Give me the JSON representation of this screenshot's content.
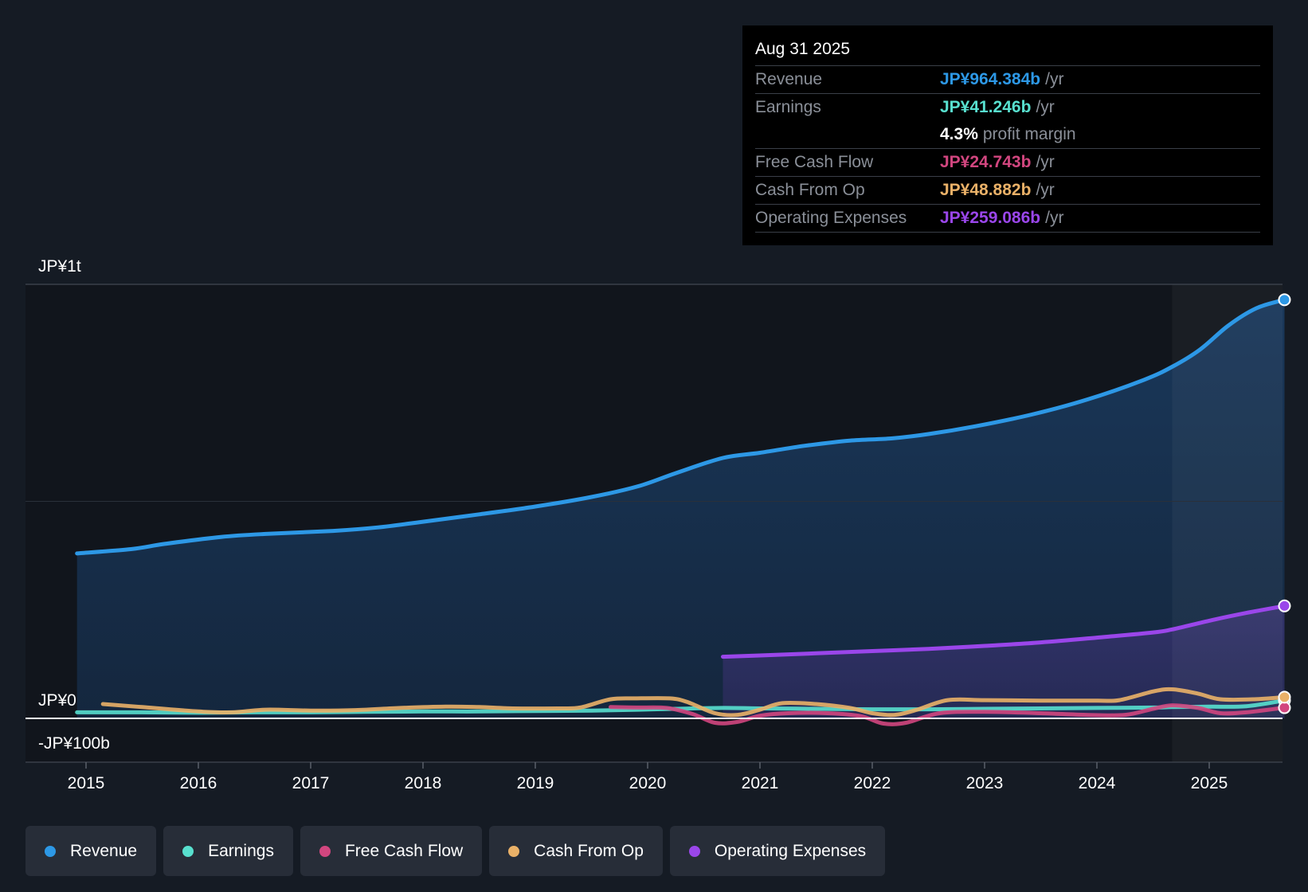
{
  "colors": {
    "background": "#151b24",
    "revenue": "#2d98e6",
    "earnings": "#58e0cf",
    "fcf": "#d2467f",
    "cfo": "#eab168",
    "opex": "#9a46ea"
  },
  "tooltip": {
    "date": "Aug 31 2025",
    "rows": [
      {
        "label": "Revenue",
        "value": "JP¥964.384b",
        "unit": "/yr"
      },
      {
        "label": "Earnings",
        "value": "JP¥41.246b",
        "unit": "/yr"
      },
      {
        "label": "",
        "value": "4.3%",
        "unit": "profit margin"
      },
      {
        "label": "Free Cash Flow",
        "value": "JP¥24.743b",
        "unit": "/yr"
      },
      {
        "label": "Cash From Op",
        "value": "JP¥48.882b",
        "unit": "/yr"
      },
      {
        "label": "Operating Expenses",
        "value": "JP¥259.086b",
        "unit": "/yr"
      }
    ]
  },
  "legend": [
    {
      "label": "Revenue",
      "color": "#2d98e6"
    },
    {
      "label": "Earnings",
      "color": "#58e0cf"
    },
    {
      "label": "Free Cash Flow",
      "color": "#d2467f"
    },
    {
      "label": "Cash From Op",
      "color": "#eab168"
    },
    {
      "label": "Operating Expenses",
      "color": "#9a46ea"
    }
  ],
  "chart_data": {
    "type": "area",
    "title": "",
    "xlabel": "",
    "ylabel": "",
    "x_ticks": [
      "2015",
      "2016",
      "2017",
      "2018",
      "2019",
      "2020",
      "2021",
      "2022",
      "2023",
      "2024",
      "2025"
    ],
    "y_tick_labels": [
      {
        "value": 1000,
        "label": "JP¥1t"
      },
      {
        "value": 0,
        "label": "JP¥0"
      },
      {
        "value": -100,
        "label": "-JP¥100b"
      }
    ],
    "ylim": [
      -100,
      1000
    ],
    "xlim": [
      2014.55,
      2025.75
    ],
    "units": "JP¥ billions",
    "forecast_shade_start": 2024.67,
    "series": [
      {
        "name": "Revenue",
        "color": "#2d98e6",
        "fill": true,
        "points": [
          [
            2014.92,
            380
          ],
          [
            2015.4,
            390
          ],
          [
            2015.7,
            402
          ],
          [
            2016.2,
            418
          ],
          [
            2016.6,
            425
          ],
          [
            2017.2,
            432
          ],
          [
            2017.6,
            440
          ],
          [
            2018.0,
            453
          ],
          [
            2018.5,
            470
          ],
          [
            2019.0,
            488
          ],
          [
            2019.5,
            510
          ],
          [
            2019.92,
            535
          ],
          [
            2020.25,
            565
          ],
          [
            2020.67,
            600
          ],
          [
            2021.0,
            612
          ],
          [
            2021.4,
            628
          ],
          [
            2021.8,
            640
          ],
          [
            2022.17,
            645
          ],
          [
            2022.5,
            655
          ],
          [
            2022.92,
            673
          ],
          [
            2023.42,
            700
          ],
          [
            2023.92,
            735
          ],
          [
            2024.42,
            780
          ],
          [
            2024.67,
            810
          ],
          [
            2024.92,
            850
          ],
          [
            2025.17,
            905
          ],
          [
            2025.42,
            945
          ],
          [
            2025.67,
            964.4
          ]
        ]
      },
      {
        "name": "Operating Expenses",
        "color": "#9a46ea",
        "fill": true,
        "points": [
          [
            2020.67,
            142
          ],
          [
            2021.0,
            145
          ],
          [
            2021.5,
            150
          ],
          [
            2022.0,
            155
          ],
          [
            2022.5,
            160
          ],
          [
            2023.0,
            167
          ],
          [
            2023.5,
            175
          ],
          [
            2024.0,
            186
          ],
          [
            2024.5,
            198
          ],
          [
            2024.67,
            205
          ],
          [
            2025.0,
            225
          ],
          [
            2025.33,
            243
          ],
          [
            2025.67,
            259.1
          ]
        ]
      },
      {
        "name": "Earnings",
        "color": "#58e0cf",
        "fill": false,
        "points": [
          [
            2014.92,
            14
          ],
          [
            2015.5,
            14
          ],
          [
            2016.0,
            13
          ],
          [
            2016.5,
            14
          ],
          [
            2017.0,
            14
          ],
          [
            2017.5,
            15
          ],
          [
            2018.0,
            16
          ],
          [
            2018.5,
            16
          ],
          [
            2019.0,
            17
          ],
          [
            2019.5,
            18
          ],
          [
            2019.92,
            20
          ],
          [
            2020.25,
            22
          ],
          [
            2020.67,
            24
          ],
          [
            2021.0,
            23
          ],
          [
            2021.5,
            22
          ],
          [
            2022.0,
            21
          ],
          [
            2022.5,
            21
          ],
          [
            2023.0,
            22
          ],
          [
            2023.5,
            23
          ],
          [
            2024.0,
            24
          ],
          [
            2024.5,
            25
          ],
          [
            2024.67,
            26
          ],
          [
            2025.0,
            27
          ],
          [
            2025.33,
            28
          ],
          [
            2025.67,
            41.2
          ]
        ]
      },
      {
        "name": "Free Cash Flow",
        "color": "#d2467f",
        "fill": false,
        "points": [
          [
            2019.67,
            26
          ],
          [
            2019.9,
            25
          ],
          [
            2020.17,
            24
          ],
          [
            2020.4,
            10
          ],
          [
            2020.6,
            -10
          ],
          [
            2020.8,
            -8
          ],
          [
            2021.0,
            6
          ],
          [
            2021.25,
            12
          ],
          [
            2021.6,
            12
          ],
          [
            2021.9,
            5
          ],
          [
            2022.1,
            -12
          ],
          [
            2022.3,
            -10
          ],
          [
            2022.6,
            12
          ],
          [
            2023.0,
            15
          ],
          [
            2023.5,
            12
          ],
          [
            2023.9,
            8
          ],
          [
            2024.25,
            8
          ],
          [
            2024.5,
            22
          ],
          [
            2024.67,
            30
          ],
          [
            2024.9,
            24
          ],
          [
            2025.1,
            12
          ],
          [
            2025.33,
            14
          ],
          [
            2025.67,
            24.7
          ]
        ]
      },
      {
        "name": "Cash From Op",
        "color": "#eab168",
        "fill": false,
        "points": [
          [
            2015.15,
            33
          ],
          [
            2015.5,
            26
          ],
          [
            2016.0,
            16
          ],
          [
            2016.3,
            14
          ],
          [
            2016.6,
            20
          ],
          [
            2017.0,
            18
          ],
          [
            2017.4,
            19
          ],
          [
            2017.8,
            24
          ],
          [
            2018.2,
            27
          ],
          [
            2018.5,
            26
          ],
          [
            2018.8,
            23
          ],
          [
            2019.2,
            23
          ],
          [
            2019.4,
            25
          ],
          [
            2019.67,
            44
          ],
          [
            2019.9,
            46
          ],
          [
            2020.2,
            46
          ],
          [
            2020.35,
            38
          ],
          [
            2020.6,
            12
          ],
          [
            2020.8,
            8
          ],
          [
            2021.0,
            20
          ],
          [
            2021.2,
            35
          ],
          [
            2021.5,
            33
          ],
          [
            2021.8,
            24
          ],
          [
            2022.0,
            12
          ],
          [
            2022.2,
            8
          ],
          [
            2022.4,
            20
          ],
          [
            2022.67,
            42
          ],
          [
            2023.0,
            42
          ],
          [
            2023.5,
            41
          ],
          [
            2024.0,
            41
          ],
          [
            2024.2,
            42
          ],
          [
            2024.5,
            62
          ],
          [
            2024.67,
            67
          ],
          [
            2024.9,
            57
          ],
          [
            2025.1,
            44
          ],
          [
            2025.4,
            44
          ],
          [
            2025.67,
            48.9
          ]
        ]
      }
    ]
  }
}
